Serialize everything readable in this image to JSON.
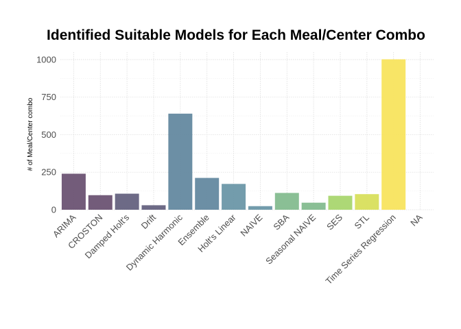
{
  "chart_data": {
    "type": "bar",
    "title": "Identified Suitable Models for Each Meal/Center Combo",
    "xlabel": "",
    "ylabel": "# of Meal/Center combo",
    "categories": [
      "ARIMA",
      "CROSTON",
      "Damped Holt's",
      "Drift",
      "Dynamic Harmonic",
      "Ensemble",
      "Holt's Linear",
      "NAIVE",
      "SBA",
      "Seasonal NAIVE",
      "SES",
      "STL",
      "Time Series Regression",
      "NA"
    ],
    "values": [
      240,
      97,
      107,
      30,
      640,
      212,
      172,
      24,
      112,
      47,
      93,
      104,
      1002,
      0
    ],
    "colors": [
      "#6b5373",
      "#6b5373",
      "#65627f",
      "#65627f",
      "#6489a0",
      "#6489a0",
      "#6c97a8",
      "#6c97a8",
      "#84bc8f",
      "#84bc8f",
      "#a9d66f",
      "#d8df5c",
      "#f8e45e",
      "#f8e45e"
    ],
    "ylim": [
      0,
      1050
    ],
    "yticks": [
      0,
      250,
      500,
      750,
      1000
    ],
    "grid": true,
    "legend": "none"
  }
}
